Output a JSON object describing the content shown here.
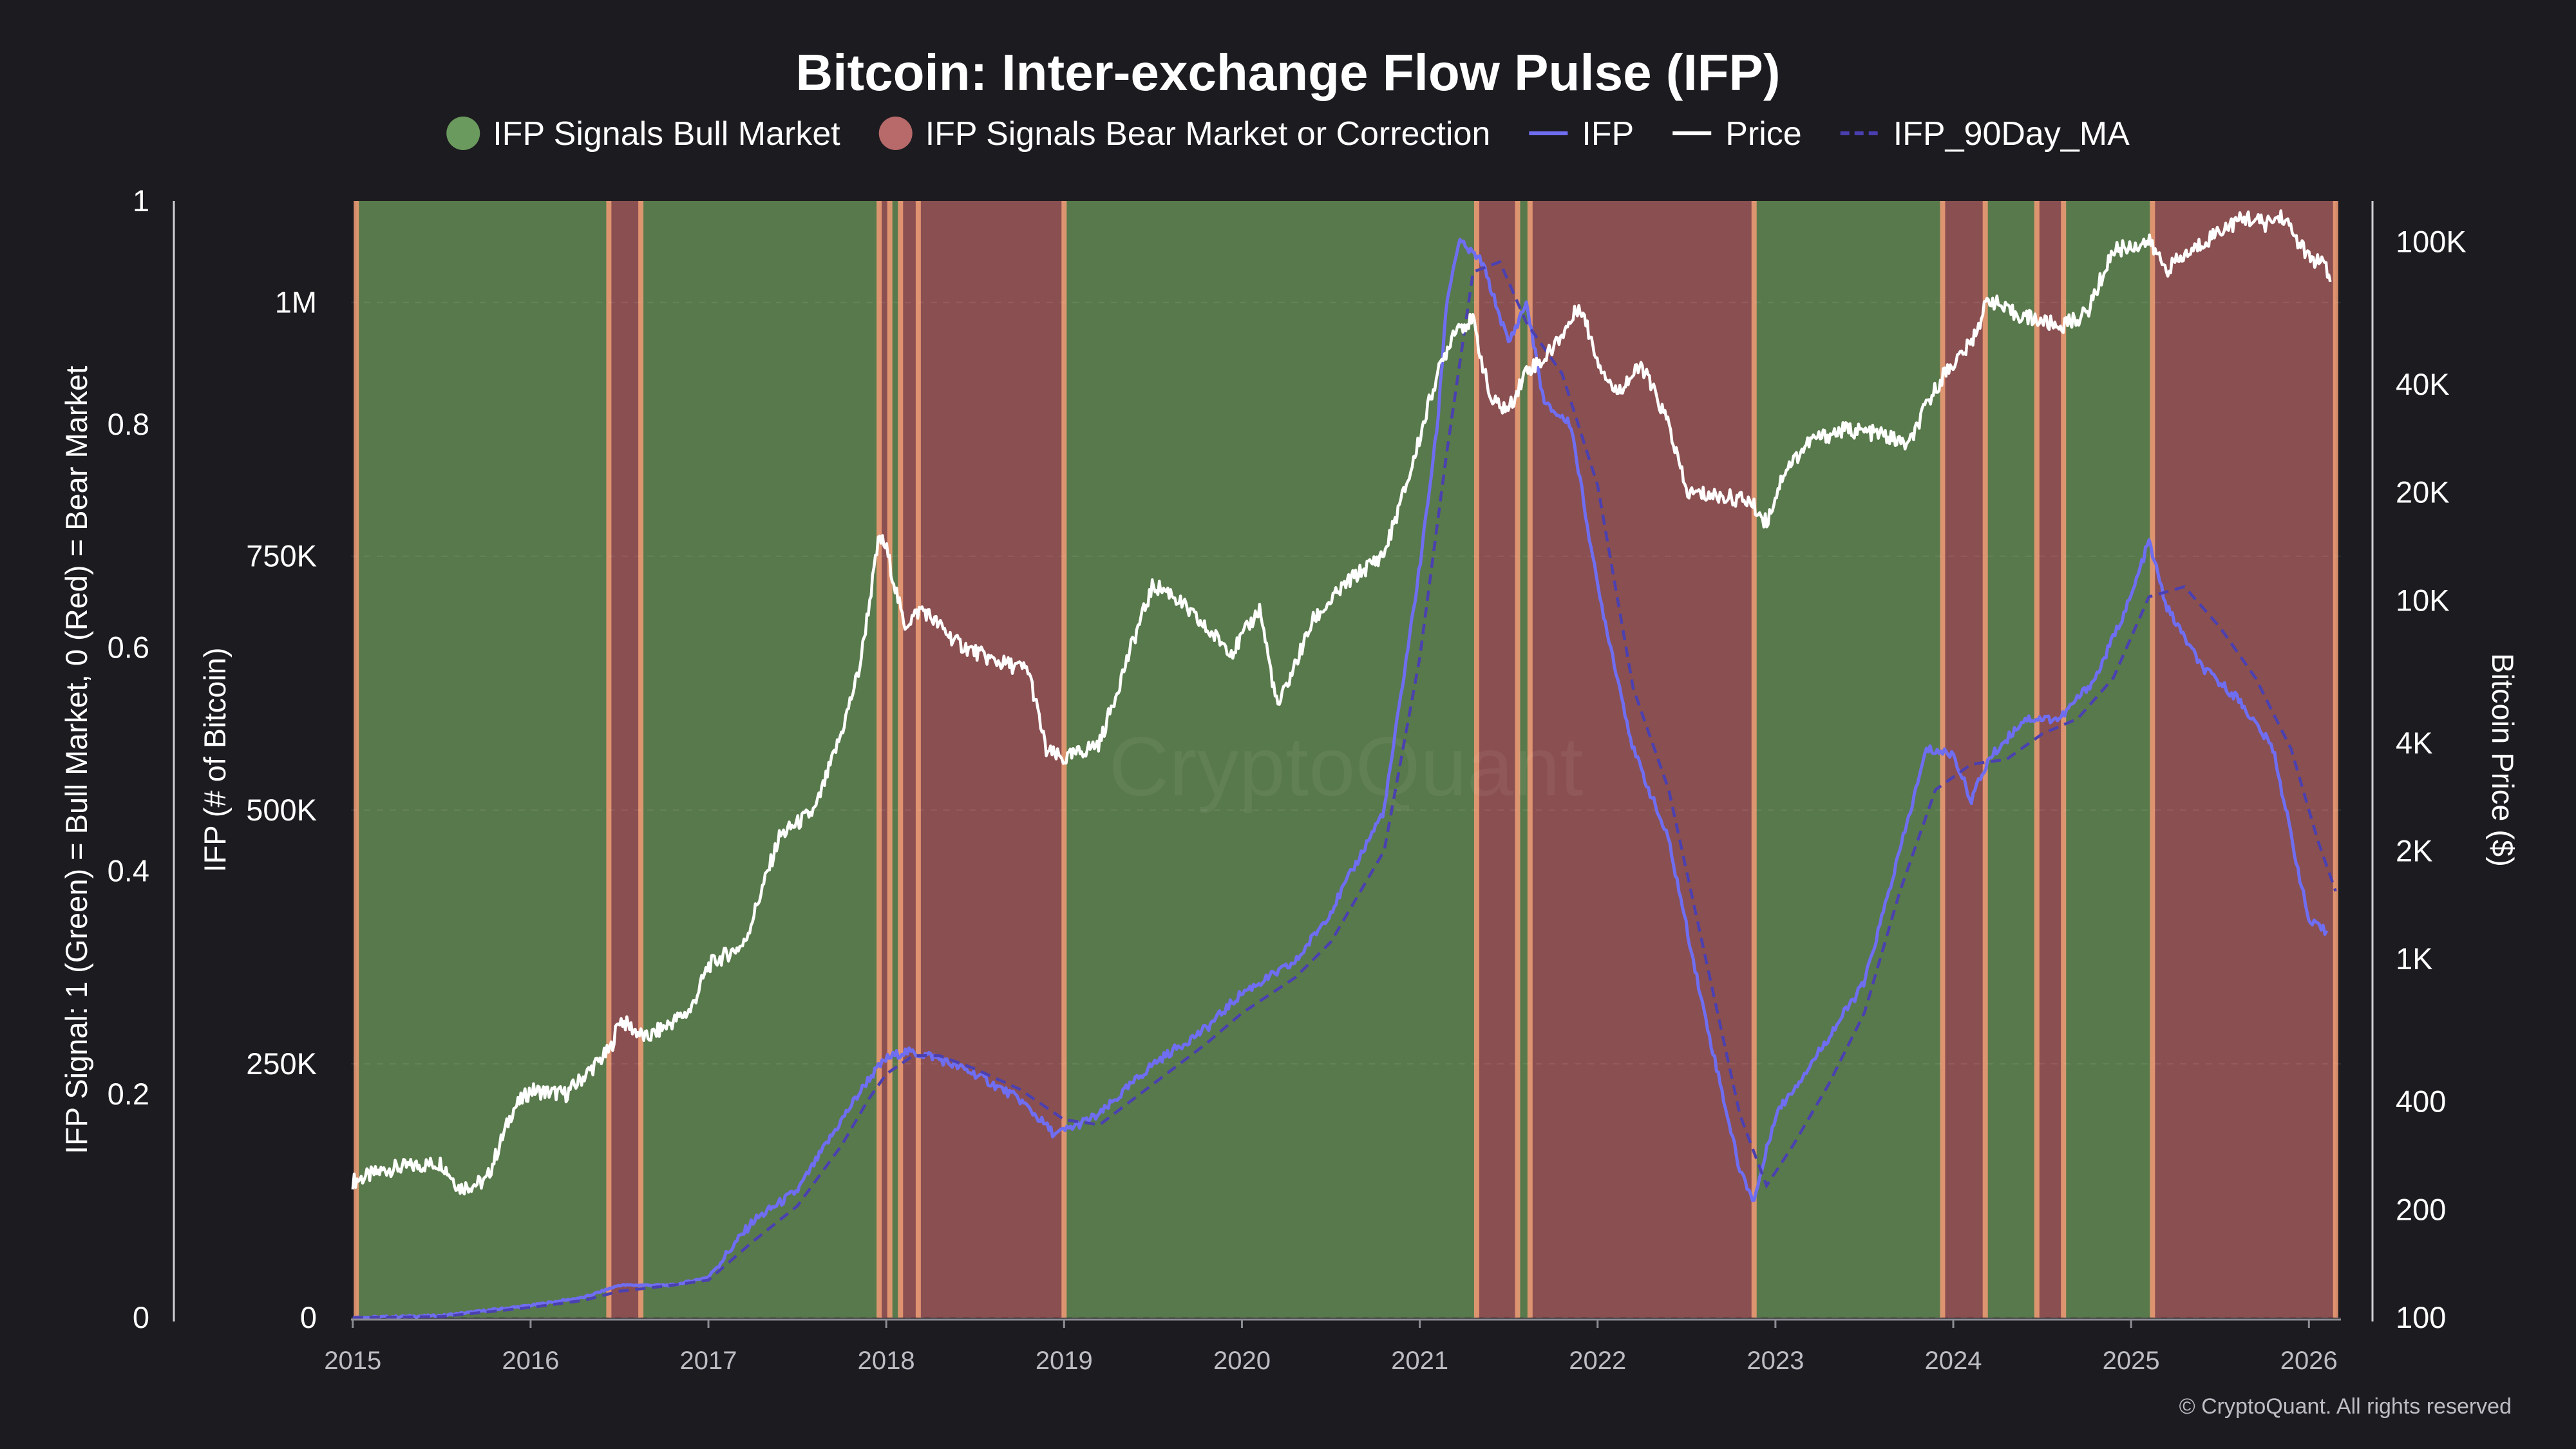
{
  "chart_data": {
    "type": "line",
    "title": "Bitcoin: Inter-exchange Flow Pulse (IFP)",
    "legend": {
      "placement": "top-center",
      "items": [
        {
          "label": "IFP Signals Bull Market",
          "kind": "dot",
          "color": "#6a9a5d"
        },
        {
          "label": "IFP Signals Bear Market or Correction",
          "kind": "dot",
          "color": "#b76a69"
        },
        {
          "label": "IFP",
          "kind": "line",
          "color": "#6f6df0"
        },
        {
          "label": "Price",
          "kind": "line",
          "color": "#ffffff"
        },
        {
          "label": "IFP_90Day_MA",
          "kind": "dash",
          "color": "#4a3fb0"
        }
      ]
    },
    "colors": {
      "bull": "#58794b",
      "bear": "#8a4f50",
      "boundary": "#e99a73",
      "ifp": "#6f6df0",
      "ma": "#4b40b0",
      "price": "#ffffff",
      "background": "#1c1b20"
    },
    "axes": {
      "signal": {
        "label": "IFP Signal: 1 (Green) = Bull Market, 0 (Red) = Bear Market",
        "range": [
          0,
          1
        ],
        "ticks": [
          "0",
          "0.2",
          "0.4",
          "0.6",
          "0.8",
          "1"
        ]
      },
      "ifp": {
        "label": "IFP (# of Bitcoin)",
        "range": [
          0,
          1100000
        ],
        "ticks": [
          {
            "v": 0,
            "t": "0"
          },
          {
            "v": 250000,
            "t": "250K"
          },
          {
            "v": 500000,
            "t": "500K"
          },
          {
            "v": 750000,
            "t": "750K"
          },
          {
            "v": 1000000,
            "t": "1M"
          }
        ]
      },
      "price": {
        "label": "Bitcoin Price ($)",
        "scale": "log",
        "range": [
          100,
          130000
        ],
        "ticks": [
          {
            "v": 100,
            "t": "100"
          },
          {
            "v": 200,
            "t": "200"
          },
          {
            "v": 400,
            "t": "400"
          },
          {
            "v": 1000,
            "t": "1K"
          },
          {
            "v": 2000,
            "t": "2K"
          },
          {
            "v": 4000,
            "t": "4K"
          },
          {
            "v": 10000,
            "t": "10K"
          },
          {
            "v": 20000,
            "t": "20K"
          },
          {
            "v": 40000,
            "t": "40K"
          },
          {
            "v": 100000,
            "t": "100K"
          }
        ]
      },
      "x": {
        "range": [
          2014.99,
          2026.18
        ],
        "ticks": [
          "2015",
          "2016",
          "2017",
          "2018",
          "2019",
          "2020",
          "2021",
          "2022",
          "2023",
          "2024",
          "2025",
          "2026"
        ]
      },
      "grid": true
    },
    "regimes": [
      {
        "start": 2015.02,
        "end": 2016.44,
        "signal": 1
      },
      {
        "start": 2016.44,
        "end": 2016.62,
        "signal": 0
      },
      {
        "start": 2016.62,
        "end": 2017.96,
        "signal": 1
      },
      {
        "start": 2017.96,
        "end": 2018.02,
        "signal": 0
      },
      {
        "start": 2018.02,
        "end": 2018.08,
        "signal": 1
      },
      {
        "start": 2018.08,
        "end": 2018.18,
        "signal": 0
      },
      {
        "start": 2018.18,
        "end": 2019.0,
        "signal": 0
      },
      {
        "start": 2019.0,
        "end": 2021.32,
        "signal": 1
      },
      {
        "start": 2021.32,
        "end": 2021.55,
        "signal": 0
      },
      {
        "start": 2021.55,
        "end": 2021.62,
        "signal": 1
      },
      {
        "start": 2021.62,
        "end": 2022.88,
        "signal": 0
      },
      {
        "start": 2022.88,
        "end": 2023.94,
        "signal": 1
      },
      {
        "start": 2023.94,
        "end": 2024.18,
        "signal": 0
      },
      {
        "start": 2024.18,
        "end": 2024.47,
        "signal": 1
      },
      {
        "start": 2024.47,
        "end": 2024.62,
        "signal": 0
      },
      {
        "start": 2024.62,
        "end": 2025.12,
        "signal": 1
      },
      {
        "start": 2025.12,
        "end": 2026.15,
        "signal": 0
      }
    ],
    "series": [
      {
        "name": "IFP",
        "style": "solid",
        "points": [
          [
            2015.0,
            0
          ],
          [
            2015.5,
            2000
          ],
          [
            2016.0,
            12000
          ],
          [
            2016.3,
            20000
          ],
          [
            2016.5,
            32000
          ],
          [
            2016.8,
            32000
          ],
          [
            2017.0,
            40000
          ],
          [
            2017.25,
            95000
          ],
          [
            2017.5,
            125000
          ],
          [
            2017.75,
            195000
          ],
          [
            2017.9,
            235000
          ],
          [
            2018.0,
            255000
          ],
          [
            2018.1,
            262000
          ],
          [
            2018.25,
            258000
          ],
          [
            2018.5,
            240000
          ],
          [
            2018.75,
            215000
          ],
          [
            2018.95,
            180000
          ],
          [
            2019.2,
            200000
          ],
          [
            2019.5,
            250000
          ],
          [
            2019.8,
            285000
          ],
          [
            2020.0,
            320000
          ],
          [
            2020.3,
            350000
          ],
          [
            2020.5,
            400000
          ],
          [
            2020.8,
            500000
          ],
          [
            2021.0,
            740000
          ],
          [
            2021.1,
            880000
          ],
          [
            2021.15,
            1000000
          ],
          [
            2021.22,
            1060000
          ],
          [
            2021.35,
            1040000
          ],
          [
            2021.5,
            960000
          ],
          [
            2021.6,
            1000000
          ],
          [
            2021.7,
            900000
          ],
          [
            2021.85,
            880000
          ],
          [
            2022.0,
            720000
          ],
          [
            2022.2,
            560000
          ],
          [
            2022.4,
            470000
          ],
          [
            2022.6,
            300000
          ],
          [
            2022.8,
            145000
          ],
          [
            2022.88,
            115000
          ],
          [
            2023.0,
            200000
          ],
          [
            2023.2,
            250000
          ],
          [
            2023.5,
            330000
          ],
          [
            2023.7,
            460000
          ],
          [
            2023.85,
            560000
          ],
          [
            2024.0,
            555000
          ],
          [
            2024.1,
            510000
          ],
          [
            2024.2,
            550000
          ],
          [
            2024.4,
            590000
          ],
          [
            2024.6,
            590000
          ],
          [
            2024.8,
            630000
          ],
          [
            2025.0,
            710000
          ],
          [
            2025.1,
            765000
          ],
          [
            2025.2,
            700000
          ],
          [
            2025.4,
            640000
          ],
          [
            2025.6,
            610000
          ],
          [
            2025.8,
            560000
          ],
          [
            2026.0,
            390000
          ],
          [
            2026.1,
            380000
          ]
        ]
      },
      {
        "name": "IFP_90Day_MA",
        "style": "dashed",
        "points": [
          [
            2015.0,
            0
          ],
          [
            2015.5,
            1000
          ],
          [
            2016.0,
            10000
          ],
          [
            2016.3,
            17000
          ],
          [
            2016.5,
            26000
          ],
          [
            2016.8,
            32000
          ],
          [
            2017.0,
            37000
          ],
          [
            2017.25,
            75000
          ],
          [
            2017.5,
            110000
          ],
          [
            2017.75,
            170000
          ],
          [
            2017.9,
            215000
          ],
          [
            2018.0,
            240000
          ],
          [
            2018.15,
            258000
          ],
          [
            2018.3,
            258000
          ],
          [
            2018.5,
            245000
          ],
          [
            2018.75,
            225000
          ],
          [
            2019.0,
            195000
          ],
          [
            2019.2,
            190000
          ],
          [
            2019.5,
            230000
          ],
          [
            2019.8,
            270000
          ],
          [
            2020.0,
            300000
          ],
          [
            2020.3,
            335000
          ],
          [
            2020.5,
            370000
          ],
          [
            2020.8,
            460000
          ],
          [
            2021.0,
            650000
          ],
          [
            2021.15,
            850000
          ],
          [
            2021.3,
            1030000
          ],
          [
            2021.45,
            1040000
          ],
          [
            2021.6,
            980000
          ],
          [
            2021.8,
            930000
          ],
          [
            2022.0,
            820000
          ],
          [
            2022.2,
            620000
          ],
          [
            2022.4,
            520000
          ],
          [
            2022.6,
            360000
          ],
          [
            2022.8,
            200000
          ],
          [
            2022.95,
            130000
          ],
          [
            2023.1,
            170000
          ],
          [
            2023.3,
            230000
          ],
          [
            2023.5,
            300000
          ],
          [
            2023.7,
            420000
          ],
          [
            2023.9,
            520000
          ],
          [
            2024.1,
            545000
          ],
          [
            2024.3,
            550000
          ],
          [
            2024.5,
            575000
          ],
          [
            2024.7,
            590000
          ],
          [
            2024.9,
            630000
          ],
          [
            2025.1,
            710000
          ],
          [
            2025.3,
            720000
          ],
          [
            2025.5,
            680000
          ],
          [
            2025.7,
            630000
          ],
          [
            2025.9,
            560000
          ],
          [
            2026.05,
            470000
          ],
          [
            2026.15,
            420000
          ]
        ]
      },
      {
        "name": "Price",
        "style": "solid",
        "points": [
          [
            2015.0,
            240
          ],
          [
            2015.2,
            260
          ],
          [
            2015.5,
            270
          ],
          [
            2015.6,
            230
          ],
          [
            2015.75,
            240
          ],
          [
            2015.9,
            380
          ],
          [
            2016.0,
            430
          ],
          [
            2016.2,
            420
          ],
          [
            2016.45,
            560
          ],
          [
            2016.5,
            680
          ],
          [
            2016.65,
            600
          ],
          [
            2016.9,
            720
          ],
          [
            2017.0,
            960
          ],
          [
            2017.2,
            1100
          ],
          [
            2017.4,
            2200
          ],
          [
            2017.6,
            2600
          ],
          [
            2017.75,
            4300
          ],
          [
            2017.85,
            6500
          ],
          [
            2017.96,
            15000
          ],
          [
            2018.0,
            14000
          ],
          [
            2018.1,
            8500
          ],
          [
            2018.2,
            9500
          ],
          [
            2018.4,
            7600
          ],
          [
            2018.6,
            6800
          ],
          [
            2018.8,
            6400
          ],
          [
            2018.9,
            3800
          ],
          [
            2019.0,
            3600
          ],
          [
            2019.2,
            4000
          ],
          [
            2019.4,
            8000
          ],
          [
            2019.5,
            11000
          ],
          [
            2019.6,
            10500
          ],
          [
            2019.8,
            8300
          ],
          [
            2019.95,
            7200
          ],
          [
            2020.1,
            9500
          ],
          [
            2020.2,
            5000
          ],
          [
            2020.4,
            8800
          ],
          [
            2020.6,
            11300
          ],
          [
            2020.8,
            13500
          ],
          [
            2020.95,
            23000
          ],
          [
            2021.08,
            40000
          ],
          [
            2021.2,
            58000
          ],
          [
            2021.3,
            60000
          ],
          [
            2021.4,
            36000
          ],
          [
            2021.5,
            34000
          ],
          [
            2021.6,
            44000
          ],
          [
            2021.7,
            47000
          ],
          [
            2021.85,
            60000
          ],
          [
            2021.9,
            67000
          ],
          [
            2022.0,
            47000
          ],
          [
            2022.1,
            38000
          ],
          [
            2022.25,
            45000
          ],
          [
            2022.4,
            31000
          ],
          [
            2022.5,
            20000
          ],
          [
            2022.7,
            19500
          ],
          [
            2022.85,
            19000
          ],
          [
            2022.95,
            16500
          ],
          [
            2023.05,
            23000
          ],
          [
            2023.2,
            28000
          ],
          [
            2023.4,
            30000
          ],
          [
            2023.6,
            29000
          ],
          [
            2023.75,
            27000
          ],
          [
            2023.85,
            35000
          ],
          [
            2023.95,
            43000
          ],
          [
            2024.1,
            52000
          ],
          [
            2024.2,
            70000
          ],
          [
            2024.3,
            64000
          ],
          [
            2024.5,
            60000
          ],
          [
            2024.6,
            58000
          ],
          [
            2024.75,
            63000
          ],
          [
            2024.9,
            95000
          ],
          [
            2025.0,
            97000
          ],
          [
            2025.1,
            100000
          ],
          [
            2025.2,
            84000
          ],
          [
            2025.35,
            95000
          ],
          [
            2025.5,
            108000
          ],
          [
            2025.65,
            117000
          ],
          [
            2025.75,
            112000
          ],
          [
            2025.85,
            118000
          ],
          [
            2026.0,
            90000
          ],
          [
            2026.08,
            87000
          ],
          [
            2026.12,
            78000
          ]
        ]
      }
    ],
    "watermark": "CryptoQuant",
    "credit": "© CryptoQuant. All rights reserved"
  }
}
